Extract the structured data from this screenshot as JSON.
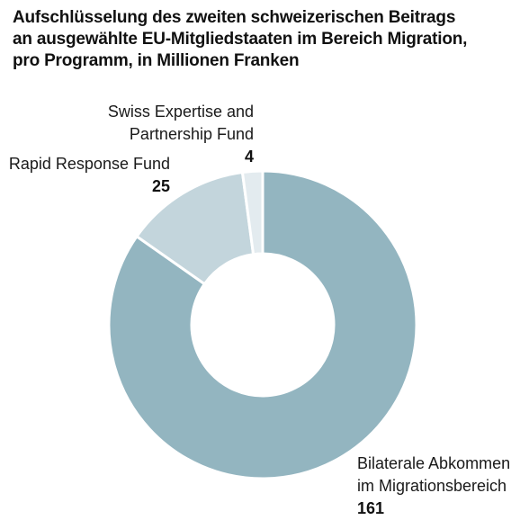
{
  "title_lines": [
    "Aufschlüsselung des zweiten schweizerischen Beitrags",
    "an ausgewählte EU-Mitgliedstaaten im Bereich Migration,",
    "pro Programm, in Millionen Franken"
  ],
  "chart_data": {
    "type": "pie",
    "style": "donut",
    "title": "Aufschlüsselung des zweiten schweizerischen Beitrags an ausgewählte EU-Mitgliedstaaten im Bereich Migration, pro Programm, in Millionen Franken",
    "slices": [
      {
        "name": "Bilaterale Abkommen im Migrationsbereich",
        "label_lines": [
          "Bilaterale Abkommen",
          "im Migrationsbereich"
        ],
        "value": 161,
        "color": "#93b5c0"
      },
      {
        "name": "Rapid Response Fund",
        "label_lines": [
          "Rapid Response Fund"
        ],
        "value": 25,
        "color": "#c3d5dc"
      },
      {
        "name": "Swiss Expertise and Partnership Fund",
        "label_lines": [
          "Swiss Expertise and",
          "Partnership Fund"
        ],
        "value": 4,
        "color": "#e3ebef"
      }
    ],
    "start": "12 o'clock",
    "direction": "clockwise",
    "legend": "none (direct labels)"
  }
}
